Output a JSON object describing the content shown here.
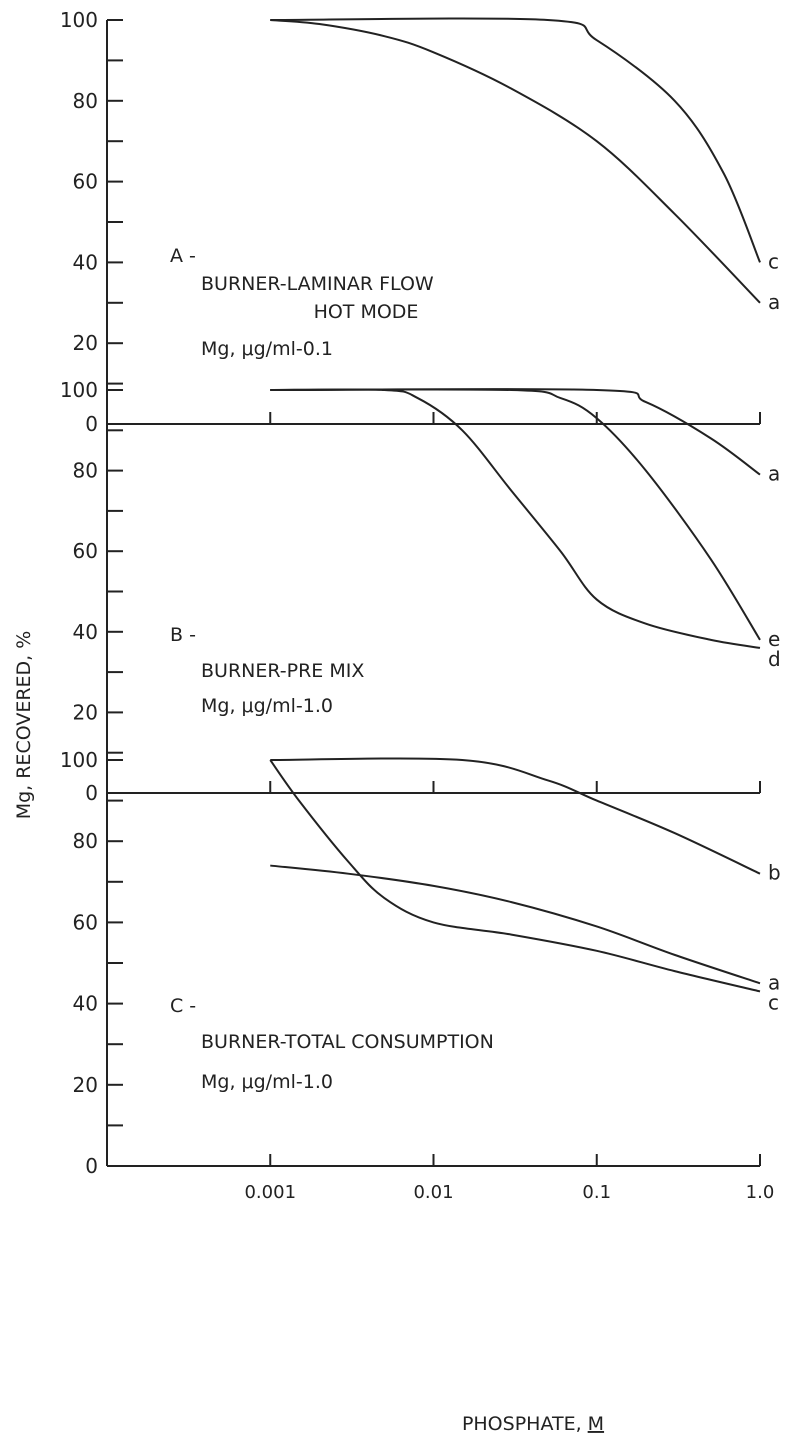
{
  "figure": {
    "ylabel": "Mg, RECOVERED, %",
    "xlabel_text": "PHOSPHATE, ",
    "xlabel_unit": "M"
  },
  "chart_data": [
    {
      "type": "line",
      "panel": "A -",
      "annotations": [
        "BURNER-LAMINAR FLOW",
        "HOT MODE",
        "Mg, μg/ml-0.1"
      ],
      "y_ticks": [
        "0",
        "20",
        "40",
        "60",
        "80",
        "100"
      ],
      "x_ticks": [],
      "ylim": [
        0,
        100
      ],
      "xlim": [
        0.0001,
        1.0
      ],
      "xscale": "log",
      "series": [
        {
          "name": "c",
          "points": [
            [
              0.001,
              100
            ],
            [
              0.05,
              100
            ],
            [
              0.1,
              95
            ],
            [
              0.3,
              80
            ],
            [
              0.6,
              62
            ],
            [
              1.0,
              40
            ]
          ]
        },
        {
          "name": "a",
          "points": [
            [
              0.001,
              100
            ],
            [
              0.002,
              99
            ],
            [
              0.005,
              96
            ],
            [
              0.01,
              92
            ],
            [
              0.03,
              83
            ],
            [
              0.1,
              70
            ],
            [
              0.3,
              52
            ],
            [
              1.0,
              30
            ]
          ]
        }
      ]
    },
    {
      "type": "line",
      "panel": "B -",
      "annotations": [
        "BURNER-PRE MIX",
        "Mg, μg/ml-1.0"
      ],
      "y_ticks": [
        "0",
        "20",
        "40",
        "60",
        "80",
        "100"
      ],
      "x_ticks": [],
      "ylim": [
        0,
        100
      ],
      "xlim": [
        0.0001,
        1.0
      ],
      "xscale": "log",
      "series": [
        {
          "name": "a",
          "points": [
            [
              0.001,
              100
            ],
            [
              0.1,
              100
            ],
            [
              0.2,
              97
            ],
            [
              0.5,
              88
            ],
            [
              1.0,
              79
            ]
          ]
        },
        {
          "name": "e",
          "points": [
            [
              0.001,
              100
            ],
            [
              0.03,
              100
            ],
            [
              0.06,
              98
            ],
            [
              0.1,
              93
            ],
            [
              0.2,
              80
            ],
            [
              0.5,
              58
            ],
            [
              1.0,
              38
            ]
          ]
        },
        {
          "name": "d",
          "points": [
            [
              0.001,
              100
            ],
            [
              0.005,
              100
            ],
            [
              0.008,
              98
            ],
            [
              0.015,
              90
            ],
            [
              0.03,
              75
            ],
            [
              0.06,
              60
            ],
            [
              0.1,
              48
            ],
            [
              0.2,
              42
            ],
            [
              0.5,
              38
            ],
            [
              1.0,
              36
            ]
          ]
        }
      ]
    },
    {
      "type": "line",
      "panel": "C -",
      "annotations": [
        "BURNER-TOTAL CONSUMPTION",
        "Mg, μg/ml-1.0"
      ],
      "y_ticks": [
        "0",
        "20",
        "40",
        "60",
        "80",
        "100"
      ],
      "x_ticks": [
        "0.001",
        "0.01",
        "0.1",
        "1.0"
      ],
      "ylim": [
        0,
        100
      ],
      "xlim": [
        0.0001,
        1.0
      ],
      "xscale": "log",
      "series": [
        {
          "name": "b",
          "points": [
            [
              0.001,
              100
            ],
            [
              0.015,
              100
            ],
            [
              0.05,
              95
            ],
            [
              0.1,
              90
            ],
            [
              0.3,
              82
            ],
            [
              1.0,
              72
            ]
          ]
        },
        {
          "name": "a",
          "points": [
            [
              0.001,
              74
            ],
            [
              0.003,
              72
            ],
            [
              0.01,
              69
            ],
            [
              0.03,
              65
            ],
            [
              0.1,
              59
            ],
            [
              0.3,
              52
            ],
            [
              1.0,
              45
            ]
          ]
        },
        {
          "name": "c",
          "points": [
            [
              0.001,
              100
            ],
            [
              0.0015,
              90
            ],
            [
              0.003,
              75
            ],
            [
              0.005,
              66
            ],
            [
              0.01,
              60
            ],
            [
              0.03,
              57
            ],
            [
              0.1,
              53
            ],
            [
              0.3,
              48
            ],
            [
              1.0,
              43
            ]
          ]
        }
      ]
    }
  ]
}
